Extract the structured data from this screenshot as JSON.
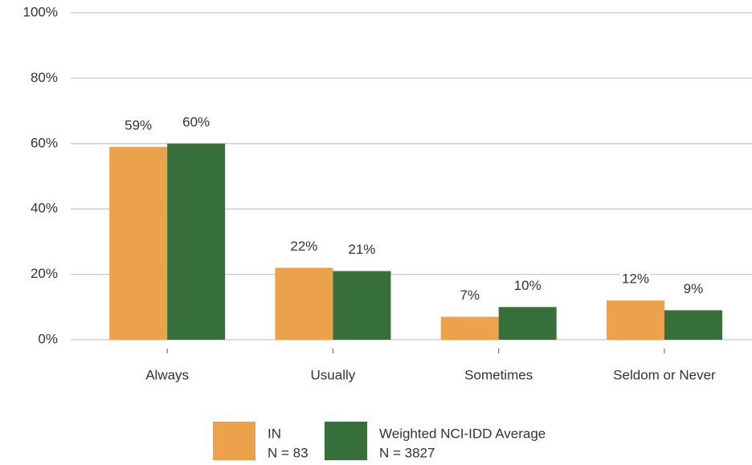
{
  "chart_data": {
    "type": "bar",
    "categories": [
      "Always",
      "Usually",
      "Sometimes",
      "Seldom or Never"
    ],
    "series": [
      {
        "name": "IN",
        "sample": "N = 83",
        "color": "#eca24b",
        "values": [
          59,
          22,
          7,
          12
        ],
        "value_labels": [
          "59%",
          "22%",
          "7%",
          "12%"
        ]
      },
      {
        "name": "Weighted NCI-IDD Average",
        "sample": "N = 3827",
        "color": "#376f3b",
        "values": [
          60,
          21,
          10,
          9
        ],
        "value_labels": [
          "60%",
          "21%",
          "10%",
          "9%"
        ]
      }
    ],
    "ylim": [
      0,
      100
    ],
    "yticks": [
      {
        "value": 0,
        "label": "0%"
      },
      {
        "value": 20,
        "label": "20%"
      },
      {
        "value": 40,
        "label": "40%"
      },
      {
        "value": 60,
        "label": "60%"
      },
      {
        "value": 80,
        "label": "80%"
      },
      {
        "value": 100,
        "label": "100%"
      }
    ],
    "grid": true,
    "legend": "bottom"
  }
}
